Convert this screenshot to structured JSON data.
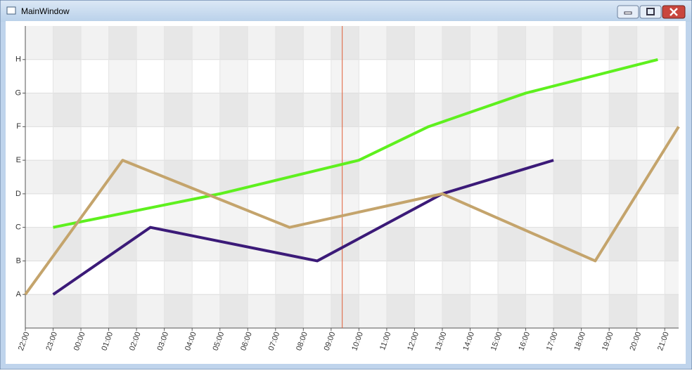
{
  "window": {
    "title": "MainWindow"
  },
  "chart_data": {
    "type": "line",
    "xlim": [
      0,
      23.5
    ],
    "xticks": [
      {
        "value": 0,
        "label": "22:00"
      },
      {
        "value": 1,
        "label": "23:00"
      },
      {
        "value": 2,
        "label": "00:00"
      },
      {
        "value": 3,
        "label": "01:00"
      },
      {
        "value": 4,
        "label": "02:00"
      },
      {
        "value": 5,
        "label": "03:00"
      },
      {
        "value": 6,
        "label": "04:00"
      },
      {
        "value": 7,
        "label": "05:00"
      },
      {
        "value": 8,
        "label": "06:00"
      },
      {
        "value": 9,
        "label": "07:00"
      },
      {
        "value": 10,
        "label": "08:00"
      },
      {
        "value": 11,
        "label": "09:00"
      },
      {
        "value": 12,
        "label": "10:00"
      },
      {
        "value": 13,
        "label": "11:00"
      },
      {
        "value": 14,
        "label": "12:00"
      },
      {
        "value": 15,
        "label": "13:00"
      },
      {
        "value": 16,
        "label": "14:00"
      },
      {
        "value": 17,
        "label": "15:00"
      },
      {
        "value": 18,
        "label": "16:00"
      },
      {
        "value": 19,
        "label": "17:00"
      },
      {
        "value": 20,
        "label": "18:00"
      },
      {
        "value": 21,
        "label": "19:00"
      },
      {
        "value": 22,
        "label": "20:00"
      },
      {
        "value": 23,
        "label": "21:00"
      }
    ],
    "ylim": [
      0,
      9
    ],
    "yticks": [
      {
        "value": 1,
        "label": "A"
      },
      {
        "value": 2,
        "label": "B"
      },
      {
        "value": 3,
        "label": "C"
      },
      {
        "value": 4,
        "label": "D"
      },
      {
        "value": 5,
        "label": "E"
      },
      {
        "value": 6,
        "label": "F"
      },
      {
        "value": 7,
        "label": "G"
      },
      {
        "value": 8,
        "label": "H"
      }
    ],
    "cursor_x": 11.4,
    "cursor_color": "#e0603a",
    "series": [
      {
        "color": "#5ef01e",
        "x": [
          1,
          7,
          12,
          14.5,
          18,
          22.75
        ],
        "values": [
          3,
          4,
          5,
          6,
          7,
          8
        ]
      },
      {
        "color": "#3b1a78",
        "x": [
          1,
          4.5,
          10.5,
          15,
          19
        ],
        "values": [
          1,
          3,
          2,
          4,
          5
        ]
      },
      {
        "color": "#c4a46c",
        "x": [
          0,
          3.5,
          9.5,
          15,
          20.5,
          23.5
        ],
        "values": [
          1,
          5,
          3,
          4,
          2,
          6
        ]
      }
    ]
  }
}
